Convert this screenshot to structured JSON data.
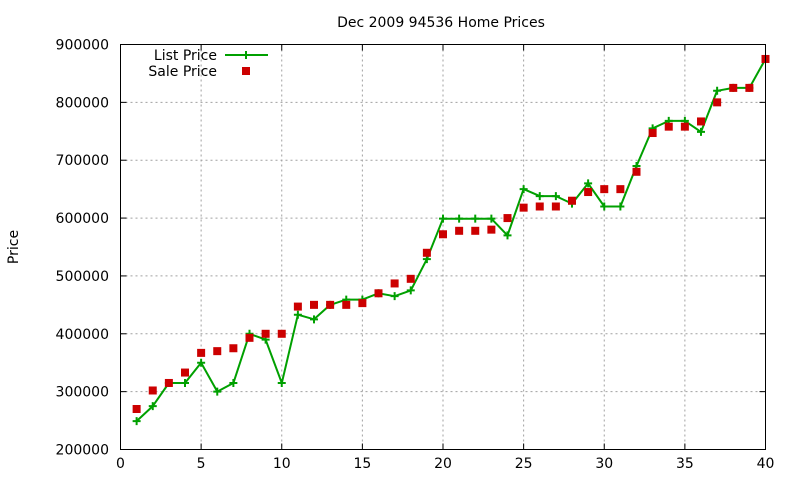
{
  "chart_data": {
    "type": "line",
    "title": "Dec 2009 94536 Home Prices",
    "xlabel": "",
    "ylabel": "Price",
    "xlim": [
      0,
      40
    ],
    "ylim": [
      200000,
      900000
    ],
    "x_ticks": [
      "0",
      "5",
      "10",
      "15",
      "20",
      "25",
      "30",
      "35",
      "40"
    ],
    "y_ticks": [
      "200000",
      "300000",
      "400000",
      "500000",
      "600000",
      "700000",
      "800000",
      "900000"
    ],
    "grid": true,
    "legend_position": "top-left",
    "series": [
      {
        "name": "List Price",
        "style": "line-with-plus-markers",
        "color": "#00a000",
        "x": [
          1,
          2,
          3,
          4,
          5,
          6,
          7,
          8,
          9,
          10,
          11,
          12,
          13,
          14,
          15,
          16,
          17,
          18,
          19,
          20,
          21,
          22,
          23,
          24,
          25,
          26,
          27,
          28,
          29,
          30,
          31,
          32,
          33,
          34,
          35,
          36,
          37,
          38,
          39,
          40
        ],
        "values": [
          249000,
          275000,
          315000,
          315000,
          350000,
          300000,
          315000,
          400000,
          390000,
          315000,
          433000,
          425000,
          450000,
          459000,
          459000,
          470000,
          465000,
          475000,
          529000,
          599000,
          599000,
          599000,
          599000,
          570000,
          650000,
          638000,
          638000,
          625000,
          660000,
          620000,
          620000,
          690000,
          755000,
          768000,
          768000,
          749000,
          820000,
          825000,
          825000,
          875000
        ]
      },
      {
        "name": "Sale Price",
        "style": "square-markers",
        "color": "#cc0000",
        "x": [
          1,
          2,
          3,
          4,
          5,
          6,
          7,
          8,
          9,
          10,
          11,
          12,
          13,
          14,
          15,
          16,
          17,
          18,
          19,
          20,
          21,
          22,
          23,
          24,
          25,
          26,
          27,
          28,
          29,
          30,
          31,
          32,
          33,
          34,
          35,
          36,
          37,
          38,
          39,
          40
        ],
        "values": [
          270000,
          302000,
          315000,
          333000,
          367000,
          370000,
          375000,
          393000,
          400000,
          400000,
          447000,
          450000,
          450000,
          450000,
          453000,
          470000,
          487000,
          495000,
          540000,
          572000,
          578000,
          578000,
          580000,
          600000,
          618000,
          620000,
          620000,
          630000,
          645000,
          650000,
          650000,
          680000,
          747000,
          758000,
          758000,
          767000,
          800000,
          825000,
          825000,
          875000
        ]
      }
    ]
  }
}
